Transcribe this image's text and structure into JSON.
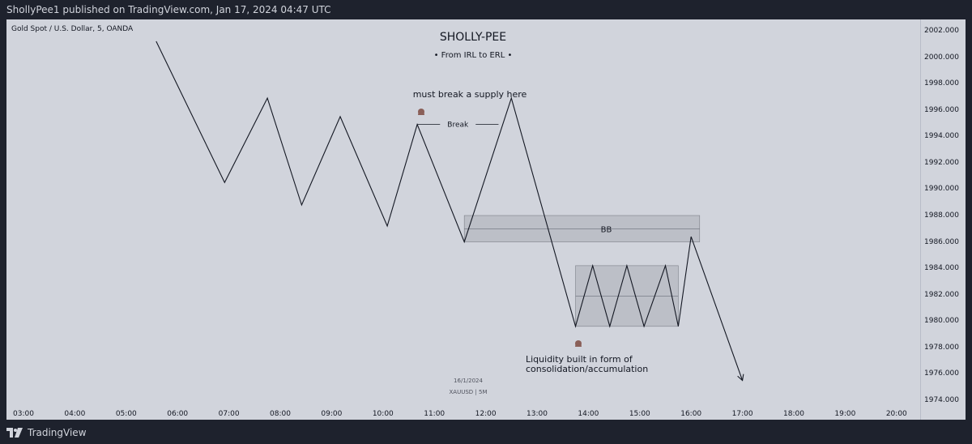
{
  "header": {
    "publish_text": "ShollyPee1 published on TradingView.com, Jan 17, 2024 04:47 UTC"
  },
  "symbol_label": "Gold Spot / U.S. Dollar, 5, OANDA",
  "title": "SHOLLY-PEE",
  "subtitle": "• From IRL to ERL •",
  "watermark": {
    "date": "16/1/2024",
    "ticker": "XAUUSD | 5M"
  },
  "annotations": {
    "supply": "must break a supply here",
    "break_label": "Break",
    "bb_label": "BB",
    "liquidity_line1": "Liquidity built in form of",
    "liquidity_line2": "consolidation/accumulation"
  },
  "footer": {
    "brand": "TradingView"
  },
  "chart_data": {
    "type": "line",
    "x_ticks": [
      "03:00",
      "04:00",
      "05:00",
      "06:00",
      "07:00",
      "08:00",
      "09:00",
      "10:00",
      "11:00",
      "12:00",
      "13:00",
      "14:00",
      "15:00",
      "16:00",
      "17:00",
      "18:00",
      "19:00",
      "20:00"
    ],
    "y_ticks": [
      1974,
      1976,
      1978,
      1980,
      1982,
      1984,
      1986,
      1988,
      1990,
      1992,
      1994,
      1996,
      1998,
      2000,
      2002
    ],
    "ylim": [
      1973,
      2003
    ],
    "grid": false,
    "series": [
      {
        "x": [
          "05:35",
          "06:55",
          "07:45",
          "08:25",
          "09:10",
          "10:05",
          "10:40",
          "11:35",
          "12:30",
          "13:45",
          "14:05",
          "14:25",
          "14:45",
          "15:05",
          "15:30",
          "15:45",
          "16:00",
          "17:00"
        ],
        "values": [
          2001.2,
          1990.5,
          1996.9,
          1988.8,
          1995.5,
          1987.2,
          1994.9,
          1986.0,
          1996.9,
          1979.6,
          1984.2,
          1979.6,
          1984.2,
          1979.6,
          1984.2,
          1979.6,
          1986.4,
          1975.5
        ]
      }
    ],
    "break_level": {
      "y": 1994.9,
      "x_start": "10:40",
      "x_end": "12:15"
    },
    "zones": [
      {
        "label": "BB",
        "x_start": "11:35",
        "x_end": "16:10",
        "y_top": 1988.0,
        "y_bottom": 1986.0,
        "mid": 1987.0
      },
      {
        "x_start": "13:45",
        "x_end": "15:45",
        "y_top": 1984.2,
        "y_bottom": 1979.6,
        "mid": 1981.9
      }
    ],
    "colors": {
      "line": "#131722",
      "zone_fill": "#9598a1",
      "arrow_icon": "#8a5f58",
      "background": "#d1d4dc"
    }
  }
}
